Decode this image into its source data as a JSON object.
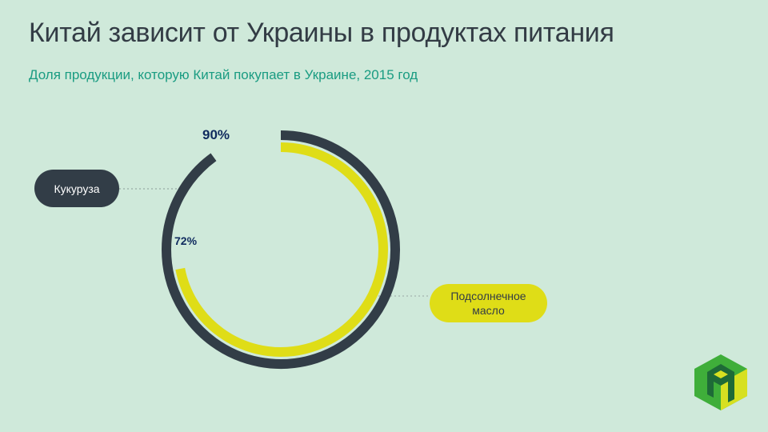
{
  "header": {
    "title": "Китай зависит от Украины в продуктах питания",
    "subtitle": "Доля продукции, которую Китай покупает в Украине, 2015 год"
  },
  "colors": {
    "background": "#cfe9da",
    "corn": "#323d47",
    "sunflower_oil": "#dfdd17",
    "title": "#333c45",
    "subtitle": "#1a9c82",
    "percent_label": "#0f2a5e"
  },
  "chart_data": {
    "type": "radial-bar",
    "title": "Китай зависит от Украины в продуктах питания",
    "subtitle": "Доля продукции, которую Китай покупает в Украине, 2015 год",
    "categories": [
      "Кукуруза",
      "Подсолнечное масло"
    ],
    "values": [
      90,
      72
    ],
    "unit": "%",
    "series": [
      {
        "name": "Кукуруза",
        "value": 90,
        "label": "90%",
        "ring": "outer",
        "color": "#323d47"
      },
      {
        "name": "Подсолнечное масло",
        "value": 72,
        "label": "72%",
        "ring": "inner",
        "color": "#dfdd17"
      }
    ],
    "max": 100
  },
  "labels": {
    "corn": "Кукуруза",
    "sunflower_line1": "Подсолнечное",
    "sunflower_line2": "масло",
    "corn_pct": "90%",
    "sunflower_pct": "72%"
  },
  "logo": {
    "icon": "cube-logo-icon"
  }
}
